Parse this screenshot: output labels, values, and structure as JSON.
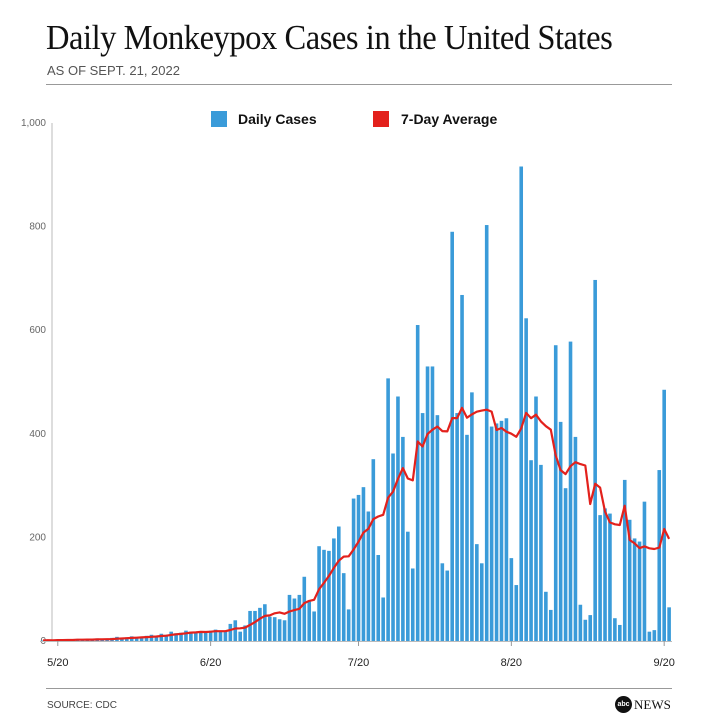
{
  "header": {
    "title": "Daily Monkeypox Cases in the United States",
    "subtitle": "AS OF SEPT. 21, 2022"
  },
  "footer": {
    "source": "SOURCE: CDC",
    "logo_text": "abc",
    "logo_news": "NEWS"
  },
  "chart_data": {
    "type": "bar",
    "title": "Daily Monkeypox Cases in the United States",
    "subtitle": "AS OF SEPT. 21, 2022",
    "xlabel": "",
    "ylabel": "",
    "ylim": [
      0,
      1000
    ],
    "y_ticks": [
      "0",
      "200",
      "400",
      "600",
      "800",
      "1,000"
    ],
    "x_ticks": [
      "5/20",
      "6/20",
      "7/20",
      "8/20",
      "9/20"
    ],
    "grid": false,
    "legend": {
      "placement": "top-center",
      "entries": [
        {
          "label": "Daily Cases",
          "color": "#3a9bd9",
          "type": "bar"
        },
        {
          "label": "7-Day Average",
          "color": "#e3211c",
          "type": "line"
        }
      ]
    },
    "x": [
      "5/17",
      "5/18",
      "5/19",
      "5/20",
      "5/21",
      "5/22",
      "5/23",
      "5/24",
      "5/25",
      "5/26",
      "5/27",
      "5/28",
      "5/29",
      "5/30",
      "5/31",
      "6/1",
      "6/2",
      "6/3",
      "6/4",
      "6/5",
      "6/6",
      "6/7",
      "6/8",
      "6/9",
      "6/10",
      "6/11",
      "6/12",
      "6/13",
      "6/14",
      "6/15",
      "6/16",
      "6/17",
      "6/18",
      "6/19",
      "6/20",
      "6/21",
      "6/22",
      "6/23",
      "6/24",
      "6/25",
      "6/26",
      "6/27",
      "6/28",
      "6/29",
      "6/30",
      "7/1",
      "7/2",
      "7/3",
      "7/4",
      "7/5",
      "7/6",
      "7/7",
      "7/8",
      "7/9",
      "7/10",
      "7/11",
      "7/12",
      "7/13",
      "7/14",
      "7/15",
      "7/16",
      "7/17",
      "7/18",
      "7/19",
      "7/20",
      "7/21",
      "7/22",
      "7/23",
      "7/24",
      "7/25",
      "7/26",
      "7/27",
      "7/28",
      "7/29",
      "7/30",
      "7/31",
      "8/1",
      "8/2",
      "8/3",
      "8/4",
      "8/5",
      "8/6",
      "8/7",
      "8/8",
      "8/9",
      "8/10",
      "8/11",
      "8/12",
      "8/13",
      "8/14",
      "8/15",
      "8/16",
      "8/17",
      "8/18",
      "8/19",
      "8/20",
      "8/21",
      "8/22",
      "8/23",
      "8/24",
      "8/25",
      "8/26",
      "8/27",
      "8/28",
      "8/29",
      "8/30",
      "8/31",
      "9/1",
      "9/2",
      "9/3",
      "9/4",
      "9/5",
      "9/6",
      "9/7",
      "9/8",
      "9/9",
      "9/10",
      "9/11",
      "9/12",
      "9/13",
      "9/14",
      "9/15",
      "9/16",
      "9/17",
      "9/18",
      "9/19",
      "9/20",
      "9/21"
    ],
    "series": [
      {
        "name": "Daily Cases",
        "values": [
          1,
          2,
          1,
          3,
          2,
          3,
          2,
          4,
          3,
          2,
          3,
          5,
          4,
          3,
          6,
          8,
          5,
          7,
          9,
          6,
          8,
          10,
          12,
          9,
          14,
          12,
          18,
          15,
          16,
          20,
          18,
          17,
          19,
          16,
          20,
          22,
          20,
          18,
          33,
          40,
          18,
          30,
          58,
          58,
          64,
          71,
          47,
          46,
          42,
          40,
          89,
          82,
          89,
          124,
          76,
          57,
          183,
          176,
          174,
          198,
          221,
          131,
          61,
          275,
          282,
          297,
          250,
          351,
          166,
          84,
          507,
          362,
          472,
          394,
          211,
          140,
          610,
          440,
          530,
          530,
          436,
          150,
          136,
          790,
          440,
          668,
          398,
          480,
          187,
          150,
          803,
          414,
          420,
          425,
          430,
          160,
          108,
          916,
          623,
          349,
          472,
          340,
          95,
          60,
          571,
          423,
          295,
          578,
          394,
          70,
          41,
          50,
          697,
          243,
          256,
          246,
          44,
          31,
          311,
          234,
          198,
          192,
          269,
          18,
          21,
          330,
          485,
          65
        ]
      },
      {
        "name": "7-Day Average",
        "derived_from": "Daily Cases",
        "window_days": 7
      }
    ]
  }
}
